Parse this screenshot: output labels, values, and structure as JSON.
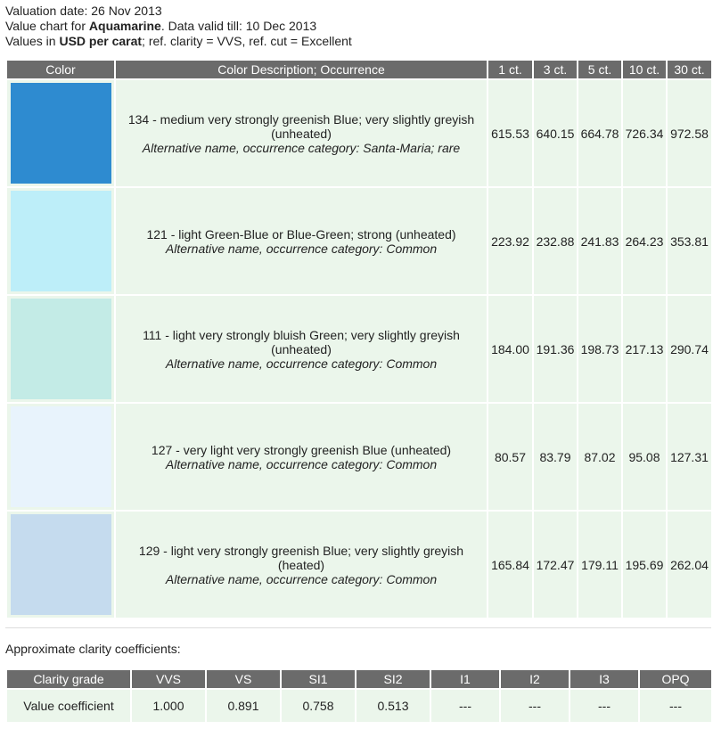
{
  "header": {
    "line0": "Valuation date: 26 Nov 2013",
    "line1": {
      "before": "Value chart for ",
      "bold": "Aquamarine",
      "after": ". Data valid till: 10 Dec 2013"
    },
    "line2": {
      "before": "Values in ",
      "bold": "USD per carat",
      "after": "; ref. clarity = VVS, ref. cut = Excellent"
    }
  },
  "table": {
    "columns": [
      "Color",
      "Color Description; Occurrence",
      "1 ct.",
      "3 ct.",
      "5 ct.",
      "10 ct.",
      "30 ct."
    ],
    "rows": [
      {
        "swatch": "#2e8bd0",
        "description": "134 - medium very strongly greenish Blue; very slightly greyish (unheated)",
        "occurrence": "Alternative name, occurrence category: Santa-Maria; rare",
        "values": [
          "615.53",
          "640.15",
          "664.78",
          "726.34",
          "972.58"
        ]
      },
      {
        "swatch": "#bdeef9",
        "description": "121 - light Green-Blue or Blue-Green; strong (unheated)",
        "occurrence": "Alternative name, occurrence category: Common",
        "values": [
          "223.92",
          "232.88",
          "241.83",
          "264.23",
          "353.81"
        ]
      },
      {
        "swatch": "#c3ebe6",
        "description": "111 - light very strongly bluish Green; very slightly greyish (unheated)",
        "occurrence": "Alternative name, occurrence category: Common",
        "values": [
          "184.00",
          "191.36",
          "198.73",
          "217.13",
          "290.74"
        ]
      },
      {
        "swatch": "#e8f3fc",
        "description": "127 - very light very strongly greenish Blue (unheated)",
        "occurrence": "Alternative name, occurrence category: Common",
        "values": [
          "80.57",
          "83.79",
          "87.02",
          "95.08",
          "127.31"
        ]
      },
      {
        "swatch": "#c5dbee",
        "description": "129 - light very strongly greenish Blue; very slightly greyish (heated)",
        "occurrence": "Alternative name, occurrence category: Common",
        "values": [
          "165.84",
          "172.47",
          "179.11",
          "195.69",
          "262.04"
        ]
      }
    ]
  },
  "clarity": {
    "title": "Approximate clarity coefficients:",
    "columns": [
      "Clarity grade",
      "VVS",
      "VS",
      "SI1",
      "SI2",
      "I1",
      "I2",
      "I3",
      "OPQ"
    ],
    "row": [
      "Value coefficient",
      "1.000",
      "0.891",
      "0.758",
      "0.513",
      "---",
      "---",
      "---",
      "---"
    ]
  }
}
